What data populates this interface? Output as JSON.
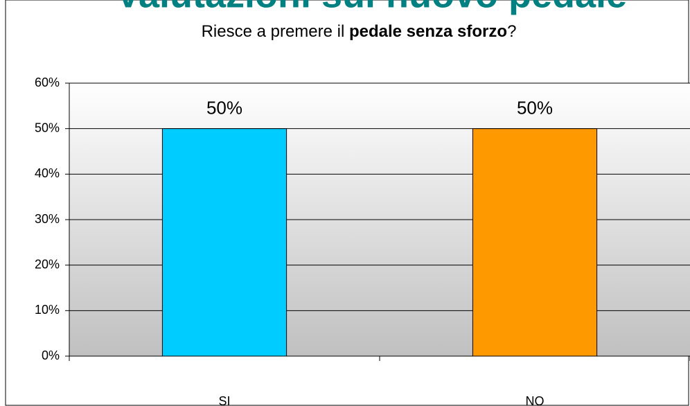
{
  "header": "Valutazioni sul nuovo pedale",
  "chart_data": {
    "type": "bar",
    "title": [
      "Riesce a premere il ",
      "pedale senza sforzo",
      "?"
    ],
    "categories": [
      "SI",
      "NO"
    ],
    "values": [
      50,
      50
    ],
    "value_labels": [
      "50%",
      "50%"
    ],
    "colors": [
      "#00ccff",
      "#ff9900"
    ],
    "ylim": [
      0,
      60
    ],
    "yticks": [
      {
        "value": 0,
        "label": "0%"
      },
      {
        "value": 10,
        "label": "10%"
      },
      {
        "value": 20,
        "label": "20%"
      },
      {
        "value": 30,
        "label": "30%"
      },
      {
        "value": 40,
        "label": "40%"
      },
      {
        "value": 50,
        "label": "50%"
      },
      {
        "value": 60,
        "label": "60%"
      }
    ],
    "grid": true
  }
}
